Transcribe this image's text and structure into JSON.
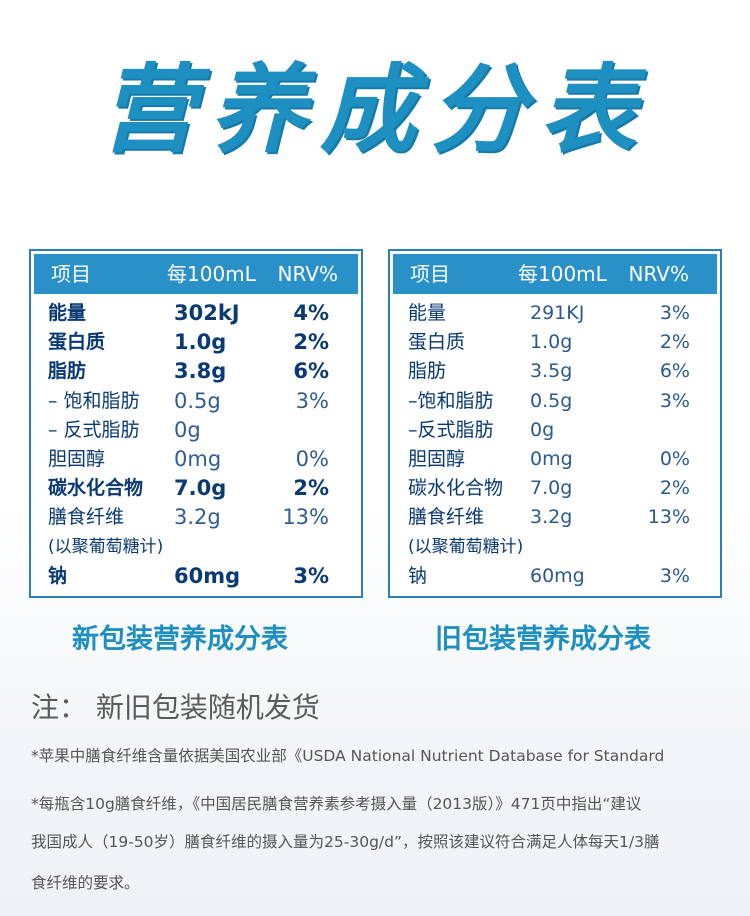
{
  "title": "营养成分表",
  "headers": [
    "项目",
    "每100mL",
    "NRV%"
  ],
  "new_table": {
    "caption": "新包装营养成分表",
    "rows": [
      {
        "name": "能量",
        "amount": "302kJ",
        "nrv": "4%"
      },
      {
        "name": "蛋白质",
        "amount": "1.0g",
        "nrv": "2%"
      },
      {
        "name": "脂肪",
        "amount": "3.8g",
        "nrv": "6%"
      },
      {
        "name": "– 饱和脂肪",
        "amount": "0.5g",
        "nrv": "3%"
      },
      {
        "name": "– 反式脂肪",
        "amount": "0g",
        "nrv": ""
      },
      {
        "name": "胆固醇",
        "amount": "0mg",
        "nrv": "0%"
      },
      {
        "name": "碳水化合物",
        "amount": "7.0g",
        "nrv": "2%"
      },
      {
        "name": "膳食纤维",
        "amount": "3.2g",
        "nrv": "13%"
      },
      {
        "name": "(以聚葡萄糖计)",
        "amount": "",
        "nrv": ""
      },
      {
        "name": "钠",
        "amount": "60mg",
        "nrv": "3%"
      }
    ]
  },
  "old_table": {
    "caption": "旧包装营养成分表",
    "rows": [
      {
        "name": "能量",
        "amount": "291KJ",
        "nrv": "3%"
      },
      {
        "name": "蛋白质",
        "amount": "1.0g",
        "nrv": "2%"
      },
      {
        "name": "脂肪",
        "amount": "3.5g",
        "nrv": "6%"
      },
      {
        "name": "–饱和脂肪",
        "amount": "0.5g",
        "nrv": "3%"
      },
      {
        "name": "–反式脂肪",
        "amount": "0g",
        "nrv": ""
      },
      {
        "name": "胆固醇",
        "amount": "0mg",
        "nrv": "0%"
      },
      {
        "name": "碳水化合物",
        "amount": "7.0g",
        "nrv": "2%"
      },
      {
        "name": "膳食纤维",
        "amount": "3.2g",
        "nrv": "13%"
      },
      {
        "name": "(以聚葡萄糖计)",
        "amount": "",
        "nrv": ""
      },
      {
        "name": "钠",
        "amount": "60mg",
        "nrv": "3%"
      }
    ]
  },
  "note": "注：  新旧包装随机发货",
  "footnotes": [
    "*苹果中膳食纤维含量依据美国农业部《USDA National  Nutrient Database for Standard",
    "*每瓶含10g膳食纤维，《中国居民膳食营养素参考摄入量（2013版）》471页中指出“建议",
    "我国成人（19-50岁）膳食纤维的摄入量为25-30g/d”，按照该建议符合满足人体每天1/3膳",
    "食纤维的要求。"
  ]
}
